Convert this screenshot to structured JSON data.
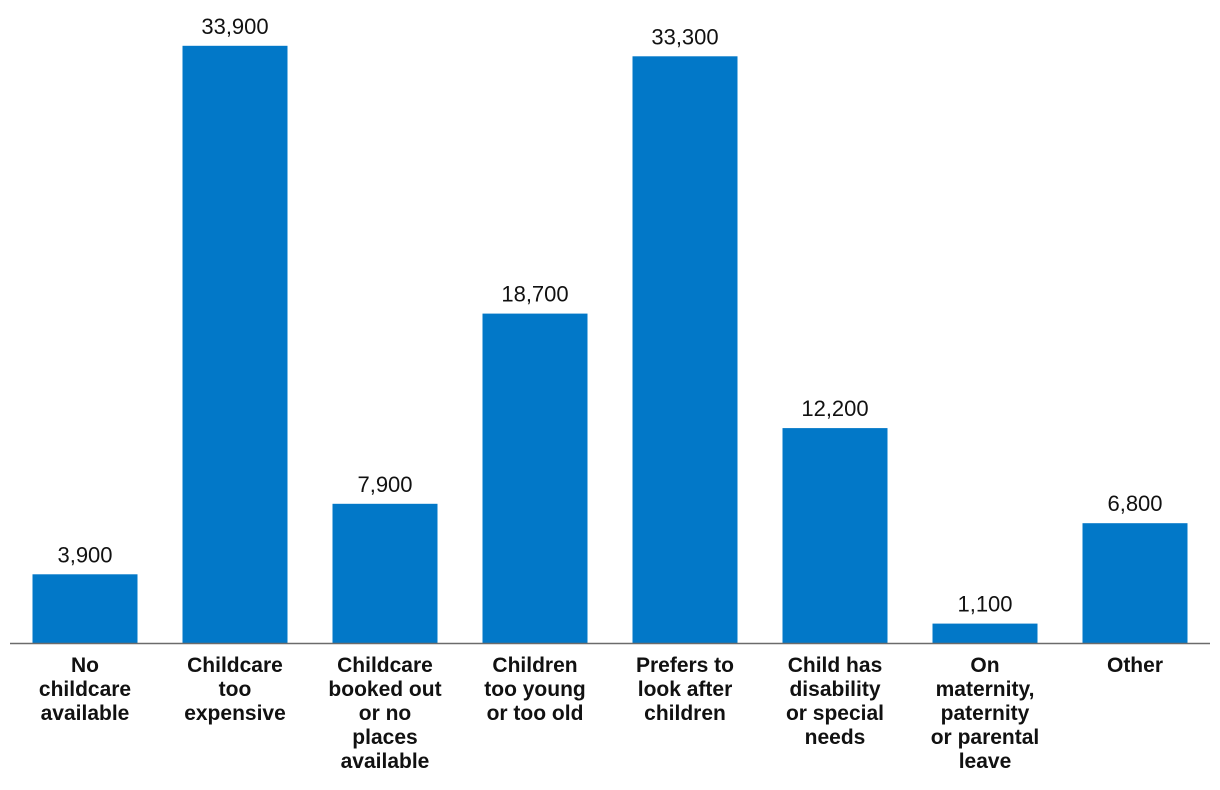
{
  "chart_data": {
    "type": "bar",
    "title": "",
    "xlabel": "",
    "ylabel": "",
    "ylim": [
      0,
      34000
    ],
    "grid": false,
    "bar_color": "#0278C8",
    "axis_color": "#6B6B6B",
    "categories": [
      [
        "No",
        "childcare",
        "available"
      ],
      [
        "Childcare",
        "too",
        "expensive"
      ],
      [
        "Childcare",
        "booked out",
        "or no",
        "places",
        "available"
      ],
      [
        "Children",
        "too young",
        "or too old"
      ],
      [
        "Prefers to",
        "look after",
        "children"
      ],
      [
        "Child has",
        "disability",
        "or special",
        "needs"
      ],
      [
        "On",
        "maternity,",
        "paternity",
        "or parental",
        "leave"
      ],
      [
        "Other"
      ]
    ],
    "values": [
      3900,
      33900,
      7900,
      18700,
      33300,
      12200,
      1100,
      6800
    ],
    "value_labels": [
      "3,900",
      "33,900",
      "7,900",
      "18,700",
      "33,300",
      "12,200",
      "1,100",
      "6,800"
    ]
  }
}
